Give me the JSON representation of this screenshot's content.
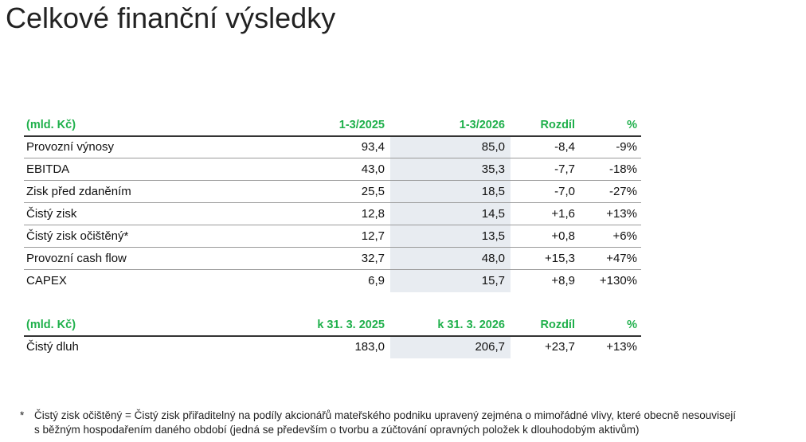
{
  "title": "Celkové finanční výsledky",
  "table1": {
    "header": [
      "(mld. Kč)",
      "1-3/2025",
      "1-3/2026",
      "Rozdíl",
      "%"
    ],
    "rows": [
      [
        "Provozní výnosy",
        "93,4",
        "85,0",
        "-8,4",
        "-9%"
      ],
      [
        "EBITDA",
        "43,0",
        "35,3",
        "-7,7",
        "-18%"
      ],
      [
        "Zisk před zdaněním",
        "25,5",
        "18,5",
        "-7,0",
        "-27%"
      ],
      [
        "Čistý zisk",
        "12,8",
        "14,5",
        "+1,6",
        "+13%"
      ],
      [
        "Čistý zisk očištěný*",
        "12,7",
        "13,5",
        "+0,8",
        "+6%"
      ],
      [
        "Provozní cash flow",
        "32,7",
        "48,0",
        "+15,3",
        "+47%"
      ],
      [
        "CAPEX",
        "6,9",
        "15,7",
        "+8,9",
        "+130%"
      ]
    ]
  },
  "table2": {
    "header": [
      "(mld. Kč)",
      "k 31. 3. 2025",
      "k 31. 3. 2026",
      "Rozdíl",
      "%"
    ],
    "rows": [
      [
        "Čistý dluh",
        "183,0",
        "206,7",
        "+23,7",
        "+13%"
      ]
    ]
  },
  "footnote": {
    "marker": "*",
    "lines": [
      "Čistý zisk očištěný = Čistý zisk přiřaditelný na podíly akcionářů mateřského podniku upravený zejména o mimořádné vlivy, které obecně nesouvisejí",
      "s běžným hospodařením daného období (jedná se především o tvorbu a zúčtování opravných položek k dlouhodobým aktivům)"
    ]
  }
}
